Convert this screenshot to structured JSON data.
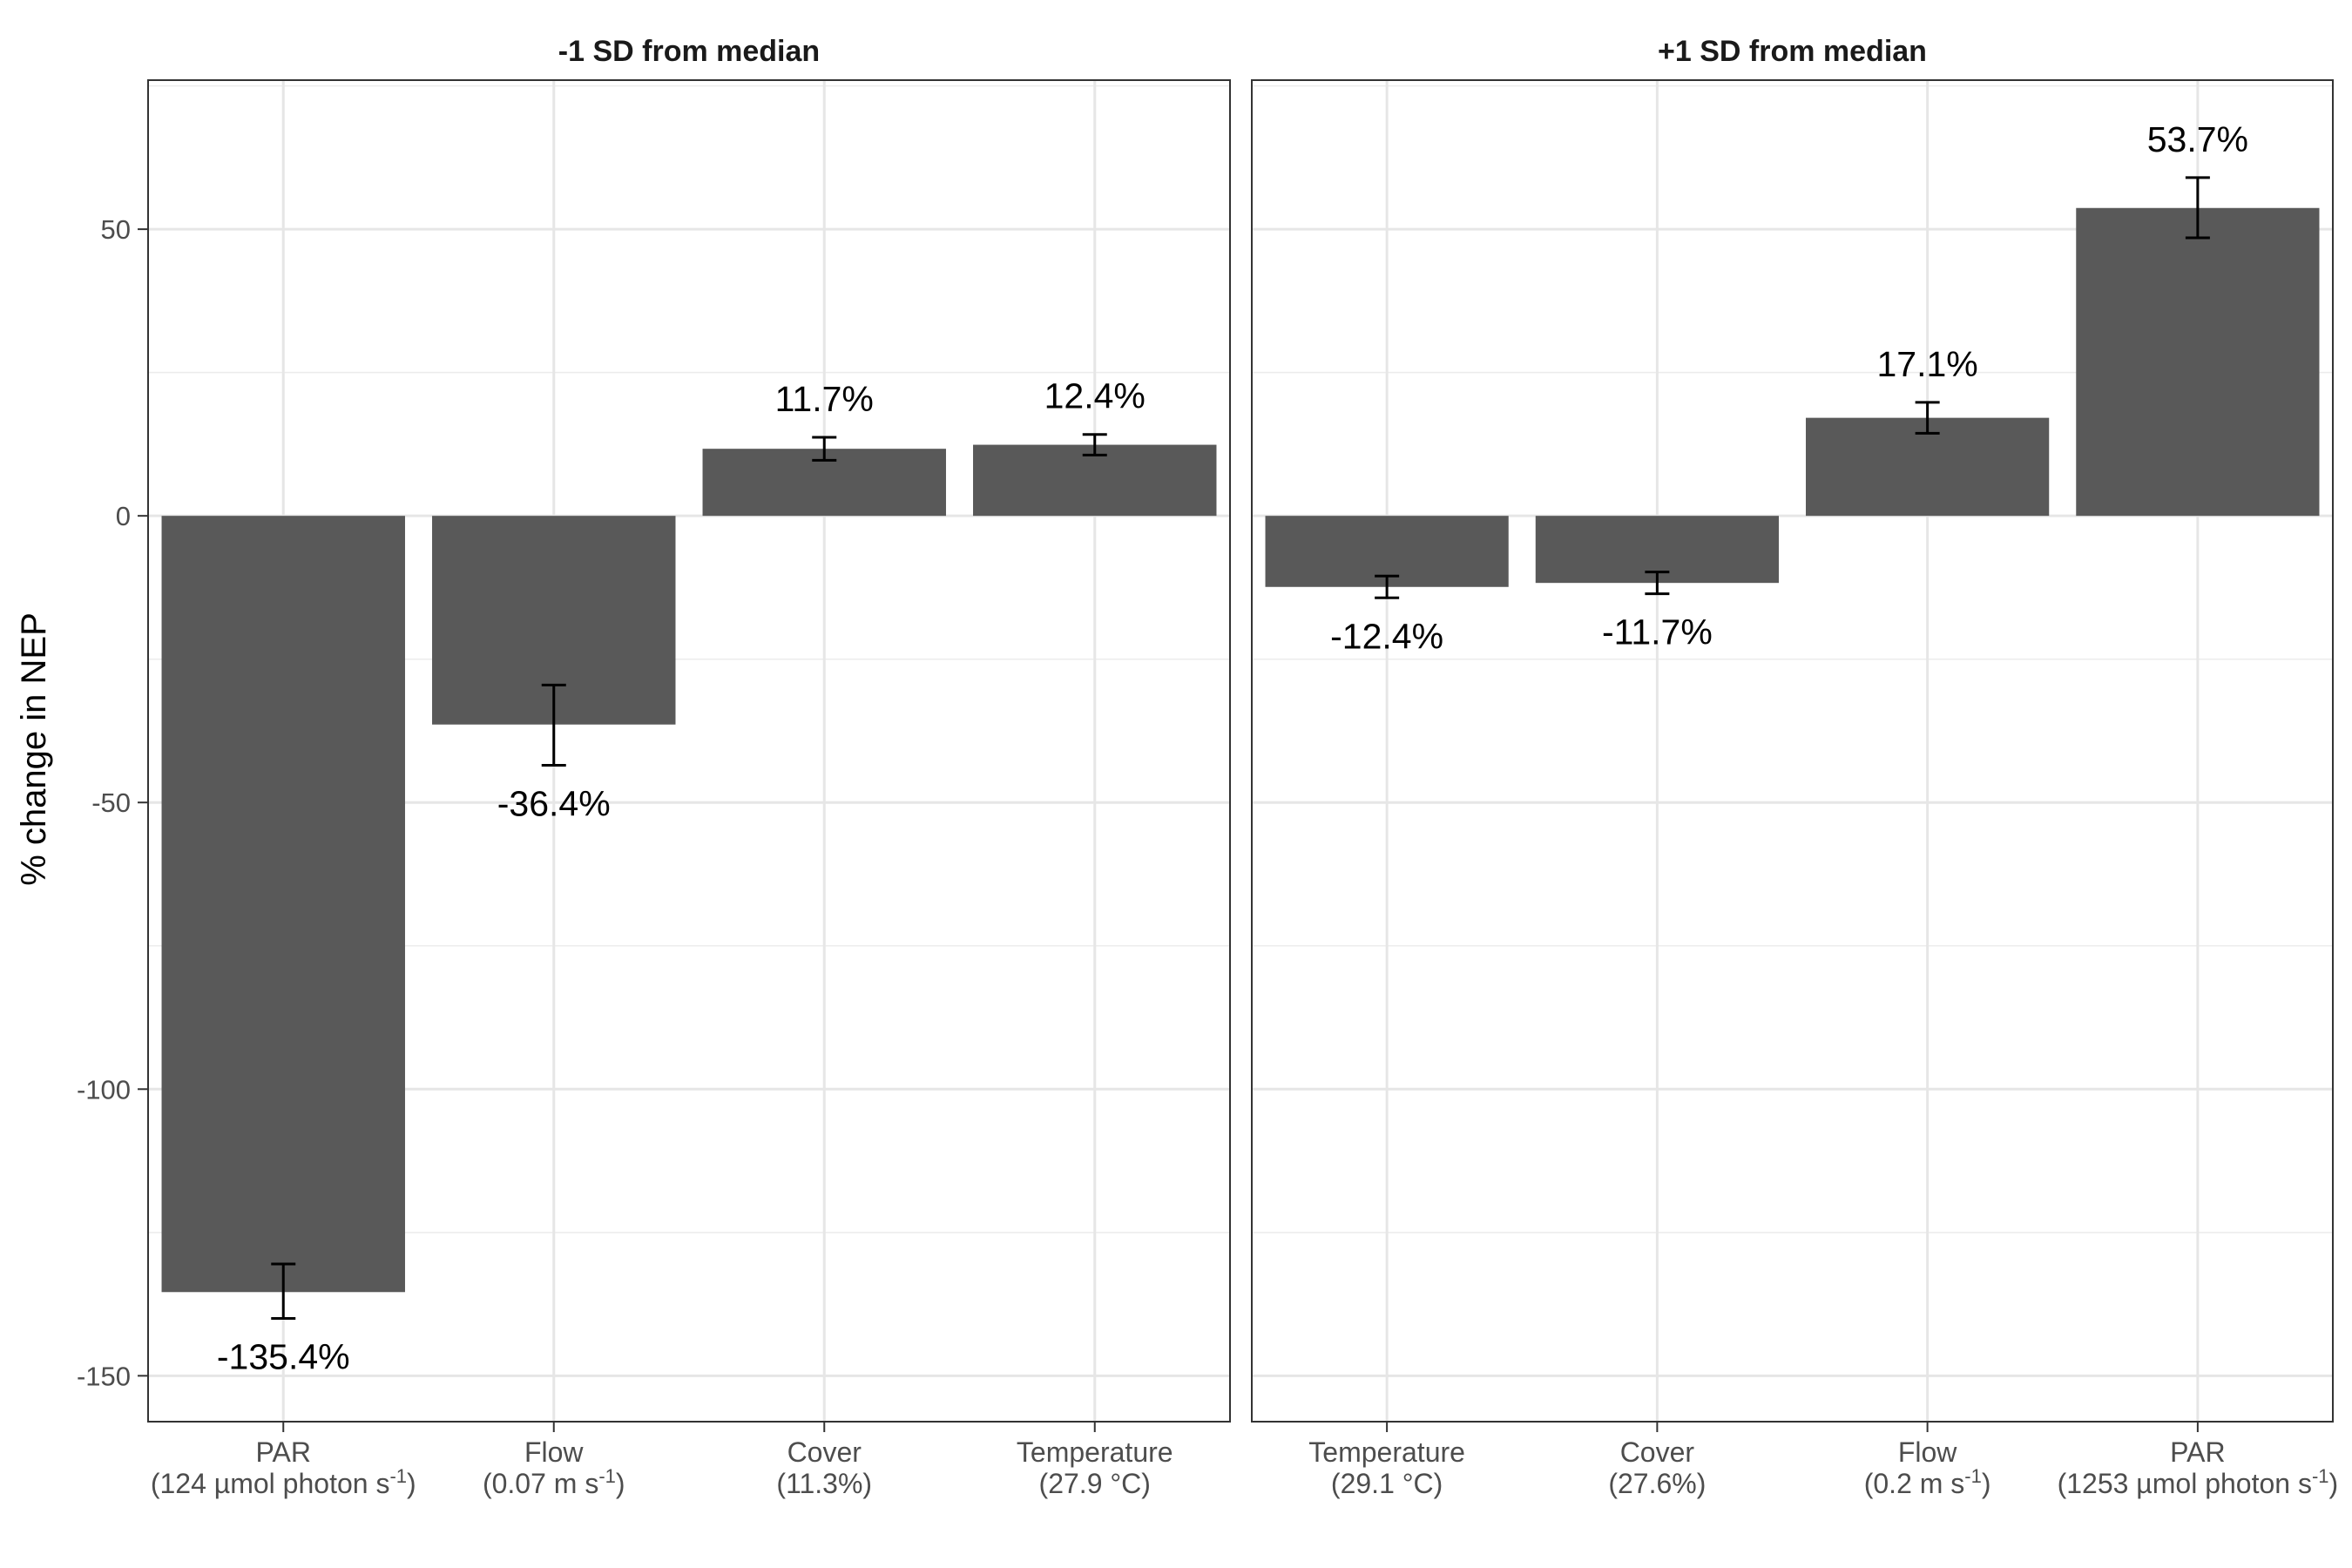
{
  "chart_data": {
    "type": "bar",
    "ylabel": "% change in NEP",
    "ylim": [
      -158,
      76
    ],
    "yticks": [
      50,
      0,
      -50,
      -100,
      -150
    ],
    "grid": true,
    "bar_color": "#595959",
    "panels": [
      {
        "title": "-1 SD from median",
        "bars": [
          {
            "category": "PAR",
            "detail": "(124 µmol photon s",
            "sup": "-1",
            "tail": ")",
            "value": -135.4,
            "err_low": -140,
            "err_high": -130.5,
            "label": "-135.4%"
          },
          {
            "category": "Flow",
            "detail": "(0.07 m s",
            "sup": "-1",
            "tail": ")",
            "value": -36.4,
            "err_low": -43.5,
            "err_high": -29.5,
            "label": "-36.4%"
          },
          {
            "category": "Cover",
            "detail": "(11.3%)",
            "sup": "",
            "tail": "",
            "value": 11.7,
            "err_low": 9.7,
            "err_high": 13.7,
            "label": "11.7%"
          },
          {
            "category": "Temperature",
            "detail": "(27.9 °C)",
            "sup": "",
            "tail": "",
            "value": 12.4,
            "err_low": 10.6,
            "err_high": 14.2,
            "label": "12.4%"
          }
        ]
      },
      {
        "title": "+1 SD from median",
        "bars": [
          {
            "category": "Temperature",
            "detail": "(29.1 °C)",
            "sup": "",
            "tail": "",
            "value": -12.4,
            "err_low": -14.3,
            "err_high": -10.5,
            "label": "-12.4%"
          },
          {
            "category": "Cover",
            "detail": "(27.6%)",
            "sup": "",
            "tail": "",
            "value": -11.7,
            "err_low": -13.6,
            "err_high": -9.8,
            "label": "-11.7%"
          },
          {
            "category": "Flow",
            "detail": "(0.2 m s",
            "sup": "-1",
            "tail": ")",
            "value": 17.1,
            "err_low": 14.4,
            "err_high": 19.8,
            "label": "17.1%"
          },
          {
            "category": "PAR",
            "detail": "(1253 µmol photon s",
            "sup": "-1",
            "tail": ")",
            "value": 53.7,
            "err_low": 48.5,
            "err_high": 59,
            "label": "53.7%"
          }
        ]
      }
    ]
  }
}
